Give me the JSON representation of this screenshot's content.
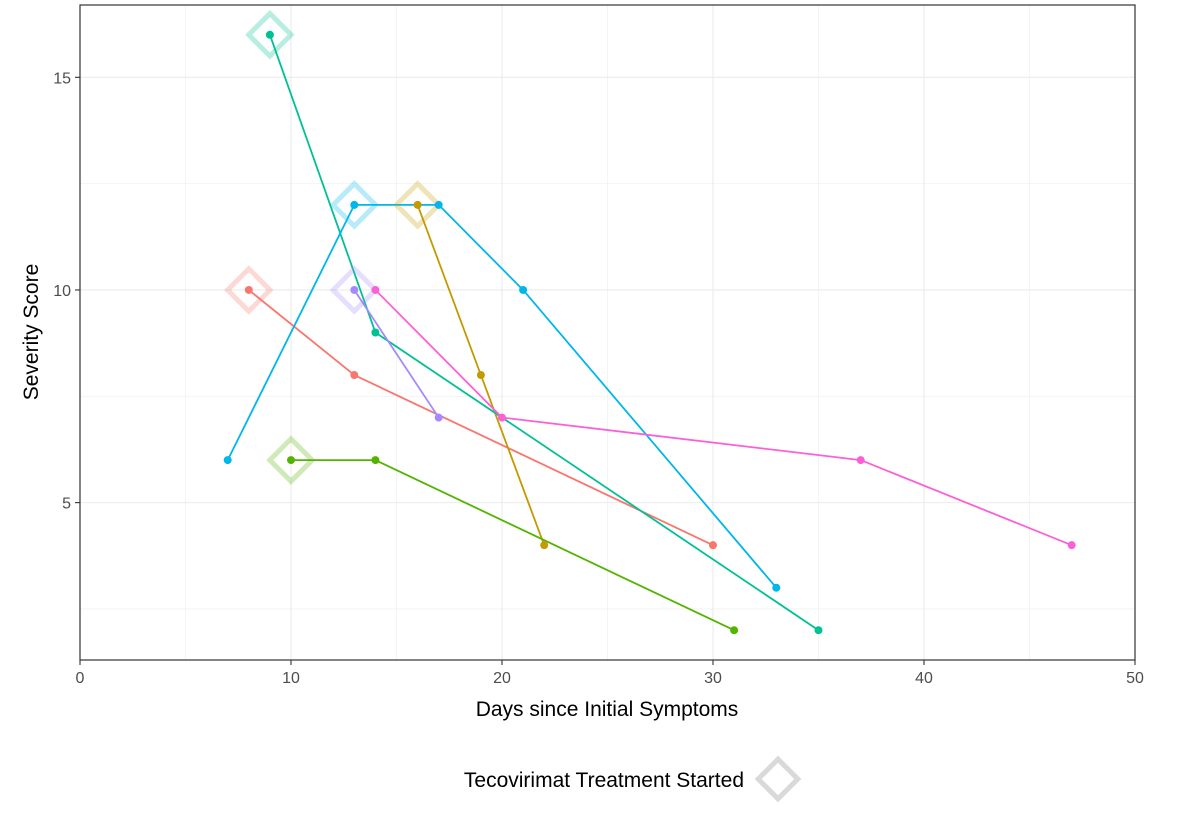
{
  "chart_data": {
    "type": "line",
    "title": "",
    "xlabel": "Days since Initial Symptoms",
    "ylabel": "Severity Score",
    "xlim": [
      0,
      50
    ],
    "ylim": [
      1.3,
      16.7
    ],
    "x_ticks": [
      0,
      10,
      20,
      30,
      40,
      50
    ],
    "y_ticks": [
      5,
      10,
      15
    ],
    "grid": true,
    "legend_position": "bottom",
    "legend": {
      "label": "Tecovirimat Treatment Started",
      "marker": "diamond",
      "marker_color": "#d9d9d9"
    },
    "series": [
      {
        "color": "#F8766D",
        "points": [
          [
            8,
            10
          ],
          [
            13,
            8
          ],
          [
            30,
            4
          ]
        ],
        "treatment_start": [
          8,
          10
        ]
      },
      {
        "color": "#C49A00",
        "points": [
          [
            16,
            12
          ],
          [
            19,
            8
          ],
          [
            22,
            4
          ]
        ],
        "treatment_start": [
          16,
          12
        ]
      },
      {
        "color": "#53B400",
        "points": [
          [
            10,
            6
          ],
          [
            14,
            6
          ],
          [
            31,
            2
          ]
        ],
        "treatment_start": [
          10,
          6
        ]
      },
      {
        "color": "#00C094",
        "points": [
          [
            9,
            16
          ],
          [
            14,
            9
          ],
          [
            35,
            2
          ]
        ],
        "treatment_start": [
          9,
          16
        ]
      },
      {
        "color": "#00B6EB",
        "points": [
          [
            7,
            6
          ],
          [
            13,
            12
          ],
          [
            17,
            12
          ],
          [
            21,
            10
          ],
          [
            33,
            3
          ]
        ],
        "treatment_start": [
          13,
          12
        ]
      },
      {
        "color": "#A58AFF",
        "points": [
          [
            13,
            10
          ],
          [
            17,
            7
          ]
        ],
        "treatment_start": [
          13,
          10
        ]
      },
      {
        "color": "#FB61D7",
        "points": [
          [
            14,
            10
          ],
          [
            20,
            7
          ],
          [
            37,
            6
          ],
          [
            47,
            4
          ]
        ],
        "treatment_start": null
      }
    ]
  }
}
